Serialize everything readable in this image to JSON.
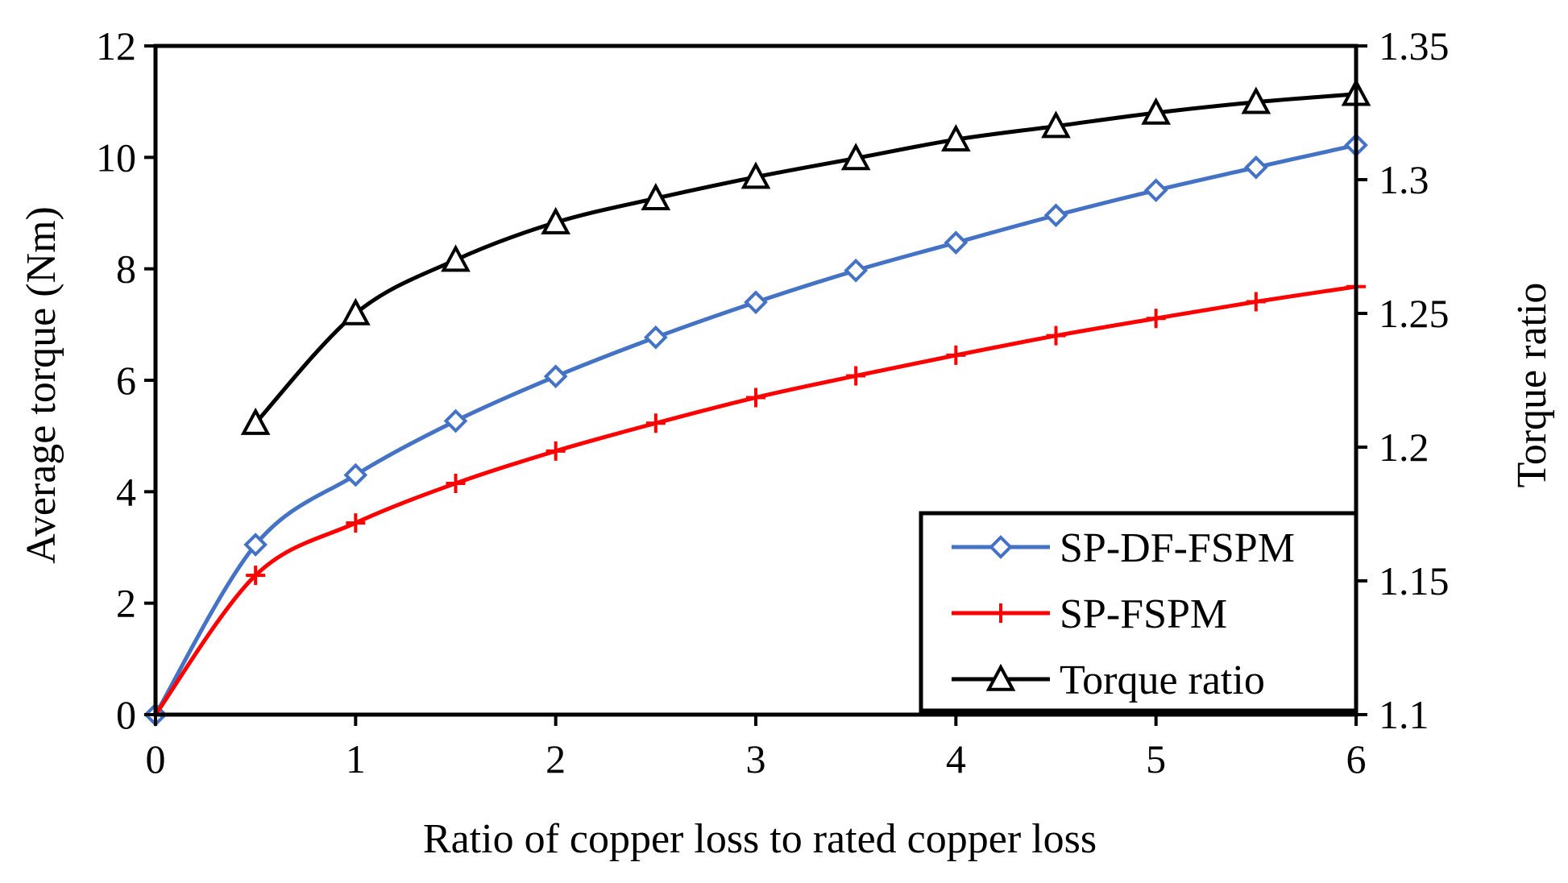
{
  "chart_data": {
    "type": "line",
    "title": "",
    "xlabel": "Ratio of copper loss to rated copper loss",
    "ylabel": "Average torque (Nm)",
    "y2label": "Torque ratio",
    "xlim": [
      0,
      6
    ],
    "ylim": [
      0,
      12
    ],
    "y2lim": [
      1.1,
      1.35
    ],
    "x_ticks": [
      "0",
      "1",
      "2",
      "3",
      "4",
      "5",
      "6"
    ],
    "y_ticks": [
      "0",
      "2",
      "4",
      "6",
      "8",
      "10",
      "12"
    ],
    "y2_ticks": [
      "1.1",
      "1.15",
      "1.2",
      "1.25",
      "1.3",
      "1.35"
    ],
    "grid": false,
    "legend_position": "bottom-right",
    "series": [
      {
        "name": "SP-DF-FSPM",
        "axis": "left",
        "color": "#4472C4",
        "marker": "diamond",
        "x": [
          0,
          0.5,
          1,
          1.5,
          2,
          2.5,
          3,
          3.5,
          4,
          4.5,
          5,
          5.5,
          6
        ],
        "values": [
          0,
          3.05,
          4.3,
          5.27,
          6.07,
          6.77,
          7.4,
          7.97,
          8.47,
          8.96,
          9.41,
          9.82,
          10.22
        ]
      },
      {
        "name": "SP-FSPM",
        "axis": "left",
        "color": "#FF0000",
        "marker": "plus",
        "x": [
          0,
          0.5,
          1,
          1.5,
          2,
          2.5,
          3,
          3.5,
          4,
          4.5,
          5,
          5.5,
          6
        ],
        "values": [
          0,
          2.5,
          3.44,
          4.15,
          4.73,
          5.23,
          5.69,
          6.08,
          6.45,
          6.8,
          7.11,
          7.41,
          7.68
        ]
      },
      {
        "name": "Torque ratio",
        "axis": "right",
        "color": "#000000",
        "marker": "triangle",
        "x": [
          0.5,
          1,
          1.5,
          2,
          2.5,
          3,
          3.5,
          4,
          4.5,
          5,
          5.5,
          6
        ],
        "values": [
          1.209,
          1.25,
          1.27,
          1.284,
          1.293,
          1.301,
          1.308,
          1.315,
          1.32,
          1.325,
          1.329,
          1.332
        ]
      }
    ]
  }
}
